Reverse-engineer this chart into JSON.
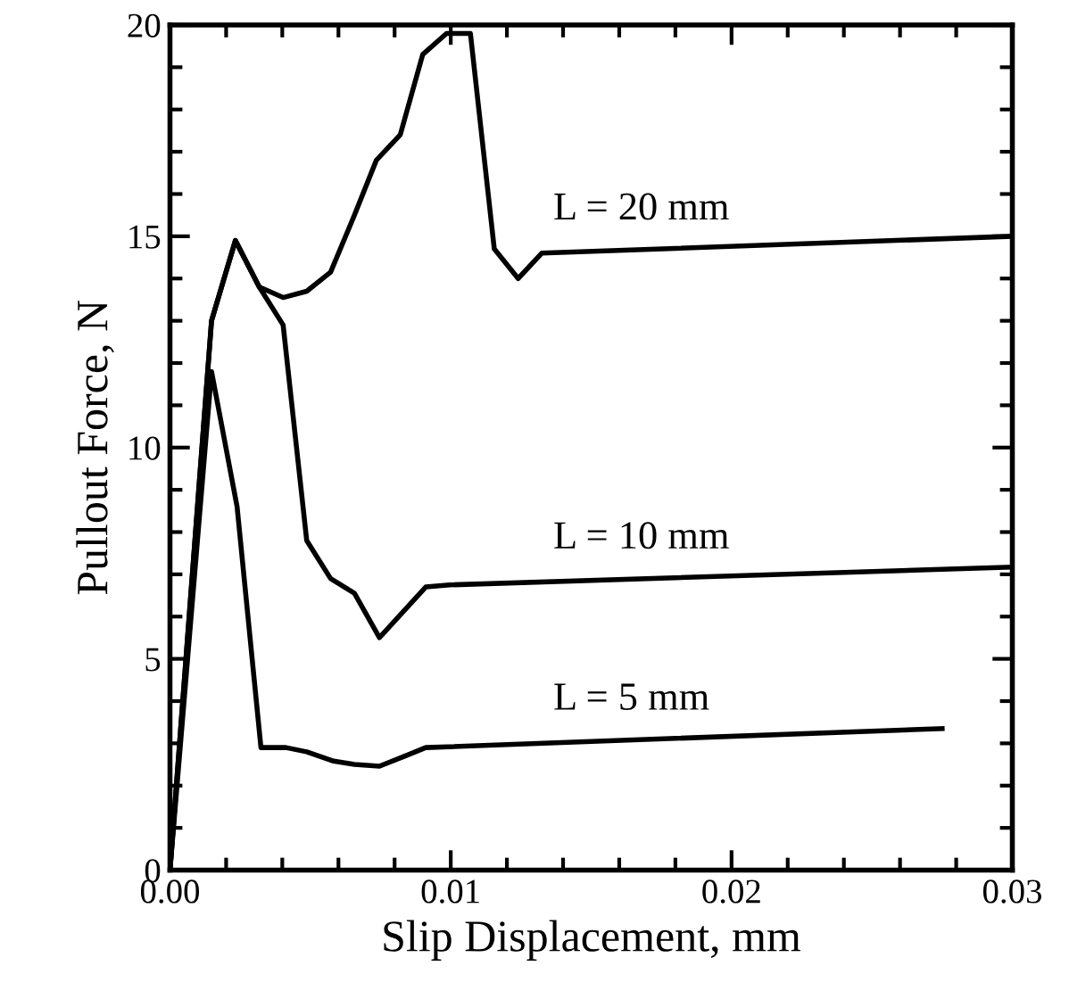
{
  "chart_data": {
    "type": "line",
    "xlabel": "Slip Displacement, mm",
    "ylabel": "Pullout Force, N",
    "series": [
      {
        "name": "L = 20 mm",
        "color": "#000000",
        "x": [
          0,
          0.00148,
          0.00233,
          0.00318,
          0.00403,
          0.00487,
          0.00572,
          0.00657,
          0.00735,
          0.0082,
          0.009,
          0.00985,
          0.0107,
          0.01155,
          0.0124,
          0.01324,
          0.03
        ],
        "values": [
          0,
          13.0,
          14.9,
          13.8,
          13.55,
          13.7,
          14.15,
          15.5,
          16.8,
          17.4,
          19.3,
          19.8,
          19.8,
          14.7,
          14.0,
          14.6,
          15.0
        ]
      },
      {
        "name": "L = 10 mm",
        "color": "#000000",
        "x": [
          0,
          0.00148,
          0.00233,
          0.00318,
          0.00403,
          0.00487,
          0.00572,
          0.00657,
          0.00746,
          0.00911,
          0.00996,
          0.03
        ],
        "values": [
          0,
          13.0,
          14.9,
          13.8,
          12.9,
          7.8,
          6.9,
          6.55,
          5.5,
          6.7,
          6.75,
          7.17
        ]
      },
      {
        "name": "L = 5 mm",
        "color": "#000000",
        "x": [
          0,
          0.00148,
          0.00239,
          0.00324,
          0.00413,
          0.00487,
          0.00583,
          0.00657,
          0.00746,
          0.00837,
          0.00911,
          0.0275
        ],
        "values": [
          0,
          11.8,
          8.6,
          2.9,
          2.9,
          2.8,
          2.58,
          2.5,
          2.46,
          2.7,
          2.9,
          3.35
        ]
      }
    ],
    "xlim": [
      0,
      0.03
    ],
    "ylim": [
      0,
      20
    ],
    "xticks": [
      {
        "value": 0,
        "label": "0.00"
      },
      {
        "value": 0.002,
        "label": null
      },
      {
        "value": 0.004,
        "label": null
      },
      {
        "value": 0.006,
        "label": null
      },
      {
        "value": 0.008,
        "label": null
      },
      {
        "value": 0.01,
        "label": "0.01"
      },
      {
        "value": 0.012,
        "label": null
      },
      {
        "value": 0.014,
        "label": null
      },
      {
        "value": 0.016,
        "label": null
      },
      {
        "value": 0.018,
        "label": null
      },
      {
        "value": 0.02,
        "label": "0.02"
      },
      {
        "value": 0.022,
        "label": null
      },
      {
        "value": 0.024,
        "label": null
      },
      {
        "value": 0.026,
        "label": null
      },
      {
        "value": 0.028,
        "label": null
      },
      {
        "value": 0.03,
        "label": "0.03"
      }
    ],
    "yticks": [
      0,
      {
        "value": 1,
        "label": null
      },
      {
        "value": 2,
        "label": null
      },
      {
        "value": 3,
        "label": null
      },
      {
        "value": 4,
        "label": null
      },
      5,
      {
        "value": 6,
        "label": null
      },
      {
        "value": 7,
        "label": null
      },
      {
        "value": 8,
        "label": null
      },
      {
        "value": 9,
        "label": null
      },
      10,
      {
        "value": 11,
        "label": null
      },
      {
        "value": 12,
        "label": null
      },
      {
        "value": 13,
        "label": null
      },
      {
        "value": 14,
        "label": null
      },
      15,
      {
        "value": 16,
        "label": null
      },
      {
        "value": 17,
        "label": null
      },
      {
        "value": 18,
        "label": null
      },
      {
        "value": 19,
        "label": null
      },
      20
    ],
    "grid": false,
    "legend": false,
    "marker": "none",
    "line_style": "solid"
  }
}
